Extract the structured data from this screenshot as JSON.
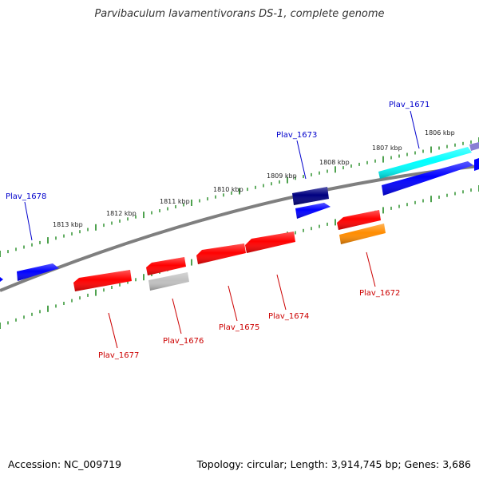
{
  "title": "Parvibaculum lavamentivorans DS-1, complete genome",
  "footer": {
    "accession": "Accession: NC_009719",
    "summary": "Topology: circular; Length: 3,914,745 bp; Genes: 3,686"
  },
  "colors": {
    "backbone": "#7f7f7f",
    "tick": "#228b22",
    "forward_label": "#0000cc",
    "reverse_label": "#cc0000"
  },
  "ticks": [
    {
      "label": "1806 kbp"
    },
    {
      "label": "1807 kbp"
    },
    {
      "label": "1808 kbp"
    },
    {
      "label": "1809 kbp"
    },
    {
      "label": "1810 kbp"
    },
    {
      "label": "1811 kbp"
    },
    {
      "label": "1812 kbp"
    },
    {
      "label": "1813 kbp"
    }
  ],
  "genes": [
    {
      "label": "Plav_1671",
      "strand": "forward",
      "color": "#00ffff"
    },
    {
      "label": "Plav_1673",
      "strand": "forward",
      "color": "#000080"
    },
    {
      "label": "Plav_1678",
      "strand": "forward",
      "color": "#0000ff"
    },
    {
      "label": "Plav_1672",
      "strand": "reverse",
      "color": "#ff8c00"
    },
    {
      "label": "Plav_1674",
      "strand": "reverse",
      "color": "#ff0000"
    },
    {
      "label": "Plav_1675",
      "strand": "reverse",
      "color": "#ff0000"
    },
    {
      "label": "Plav_1676",
      "strand": "reverse",
      "color": "#c0c0c0"
    },
    {
      "label": "Plav_1677",
      "strand": "reverse",
      "color": "#ff0000"
    }
  ]
}
